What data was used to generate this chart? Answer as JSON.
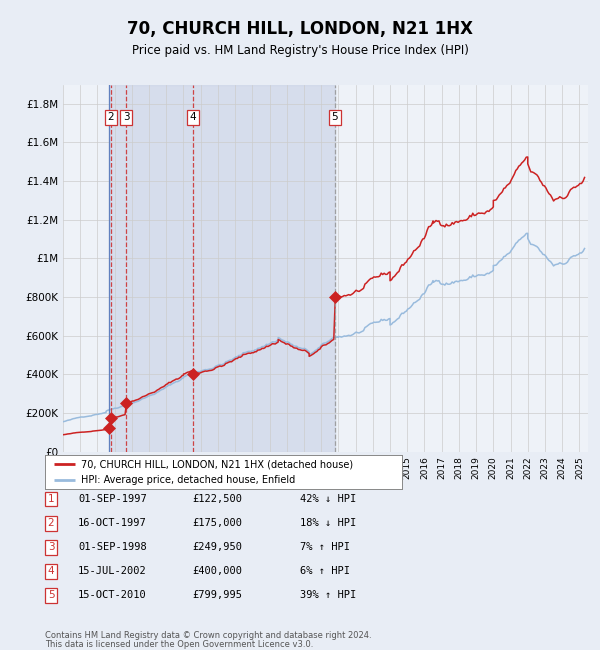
{
  "title": "70, CHURCH HILL, LONDON, N21 1HX",
  "subtitle": "Price paid vs. HM Land Registry's House Price Index (HPI)",
  "hpi_label": "HPI: Average price, detached house, Enfield",
  "property_label": "70, CHURCH HILL, LONDON, N21 1HX (detached house)",
  "footer_line1": "Contains HM Land Registry data © Crown copyright and database right 2024.",
  "footer_line2": "This data is licensed under the Open Government Licence v3.0.",
  "transactions": [
    {
      "num": 1,
      "date": "01-SEP-1997",
      "year": 1997.67,
      "price": 122500,
      "pct": "42% ↓ HPI"
    },
    {
      "num": 2,
      "date": "16-OCT-1997",
      "year": 1997.79,
      "price": 175000,
      "pct": "18% ↓ HPI"
    },
    {
      "num": 3,
      "date": "01-SEP-1998",
      "year": 1998.67,
      "price": 249950,
      "pct": "7% ↑ HPI"
    },
    {
      "num": 4,
      "date": "15-JUL-2002",
      "year": 2002.54,
      "price": 400000,
      "pct": "6% ↑ HPI"
    },
    {
      "num": 5,
      "date": "15-OCT-2010",
      "year": 2010.79,
      "price": 799995,
      "pct": "39% ↑ HPI"
    }
  ],
  "vline_colors": {
    "1": "#5577bb",
    "2": "#cc3333",
    "3": "#cc3333",
    "4": "#cc3333",
    "5": "#999999"
  },
  "vline_styles": {
    "1": "solid",
    "2": "dashed",
    "3": "dashed",
    "4": "dashed",
    "5": "dashed"
  },
  "ylim": [
    0,
    1900000
  ],
  "xlim": [
    1995,
    2025.5
  ],
  "bg_color": "#e8edf5",
  "plot_bg": "#eef2f8",
  "red_line": "#cc2222",
  "blue_line": "#99bbdd",
  "marker_color": "#cc2222",
  "grid_color": "#cccccc",
  "shade_color": "#ccd5e8"
}
